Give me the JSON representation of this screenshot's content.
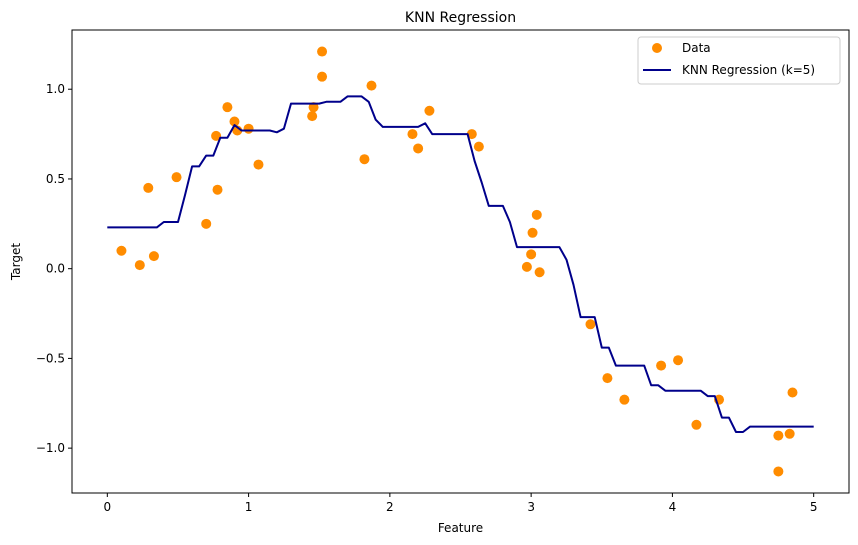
{
  "chart_data": {
    "type": "scatter",
    "title": "KNN Regression",
    "xlabel": "Feature",
    "ylabel": "Target",
    "xlim": [
      -0.25,
      5.25
    ],
    "ylim": [
      -1.25,
      1.33
    ],
    "xticks": [
      0,
      1,
      2,
      3,
      4,
      5
    ],
    "xtick_labels": [
      "0",
      "1",
      "2",
      "3",
      "4",
      "5"
    ],
    "yticks": [
      -1.0,
      -0.5,
      0.0,
      0.5,
      1.0
    ],
    "ytick_labels": [
      "−1.0",
      "−0.5",
      "0.0",
      "0.5",
      "1.0"
    ],
    "grid": false,
    "legend_position": "top-right",
    "series": [
      {
        "name": "Data",
        "kind": "scatter",
        "color": "#ff8c00",
        "points": [
          [
            0.1,
            0.1
          ],
          [
            0.23,
            0.02
          ],
          [
            0.29,
            0.45
          ],
          [
            0.33,
            0.07
          ],
          [
            0.49,
            0.51
          ],
          [
            0.7,
            0.25
          ],
          [
            0.77,
            0.74
          ],
          [
            0.78,
            0.44
          ],
          [
            0.85,
            0.9
          ],
          [
            0.9,
            0.82
          ],
          [
            0.92,
            0.77
          ],
          [
            1.0,
            0.78
          ],
          [
            1.07,
            0.58
          ],
          [
            1.45,
            0.85
          ],
          [
            1.46,
            0.9
          ],
          [
            1.52,
            1.07
          ],
          [
            1.52,
            1.21
          ],
          [
            1.82,
            0.61
          ],
          [
            1.87,
            1.02
          ],
          [
            2.16,
            0.75
          ],
          [
            2.2,
            0.67
          ],
          [
            2.28,
            0.88
          ],
          [
            2.58,
            0.75
          ],
          [
            2.63,
            0.68
          ],
          [
            2.97,
            0.01
          ],
          [
            3.0,
            0.08
          ],
          [
            3.01,
            0.2
          ],
          [
            3.04,
            0.3
          ],
          [
            3.06,
            -0.02
          ],
          [
            3.42,
            -0.31
          ],
          [
            3.54,
            -0.61
          ],
          [
            3.66,
            -0.73
          ],
          [
            3.92,
            -0.54
          ],
          [
            4.04,
            -0.51
          ],
          [
            4.17,
            -0.87
          ],
          [
            4.33,
            -0.73
          ],
          [
            4.75,
            -1.13
          ],
          [
            4.75,
            -0.93
          ],
          [
            4.83,
            -0.92
          ],
          [
            4.85,
            -0.69
          ]
        ]
      },
      {
        "name": "KNN Regression (k=5)",
        "kind": "line",
        "color": "#00008b",
        "points": [
          [
            0.0,
            0.23
          ],
          [
            0.35,
            0.23
          ],
          [
            0.4,
            0.26
          ],
          [
            0.5,
            0.26
          ],
          [
            0.55,
            0.41
          ],
          [
            0.6,
            0.57
          ],
          [
            0.65,
            0.57
          ],
          [
            0.7,
            0.63
          ],
          [
            0.75,
            0.63
          ],
          [
            0.8,
            0.73
          ],
          [
            0.85,
            0.73
          ],
          [
            0.9,
            0.8
          ],
          [
            0.95,
            0.77
          ],
          [
            1.15,
            0.77
          ],
          [
            1.2,
            0.76
          ],
          [
            1.25,
            0.78
          ],
          [
            1.3,
            0.92
          ],
          [
            1.5,
            0.92
          ],
          [
            1.55,
            0.93
          ],
          [
            1.65,
            0.93
          ],
          [
            1.7,
            0.96
          ],
          [
            1.8,
            0.96
          ],
          [
            1.85,
            0.93
          ],
          [
            1.9,
            0.83
          ],
          [
            1.95,
            0.79
          ],
          [
            2.2,
            0.79
          ],
          [
            2.25,
            0.81
          ],
          [
            2.3,
            0.75
          ],
          [
            2.55,
            0.75
          ],
          [
            2.6,
            0.6
          ],
          [
            2.65,
            0.48
          ],
          [
            2.7,
            0.35
          ],
          [
            2.8,
            0.35
          ],
          [
            2.85,
            0.26
          ],
          [
            2.9,
            0.12
          ],
          [
            3.2,
            0.12
          ],
          [
            3.25,
            0.05
          ],
          [
            3.3,
            -0.09
          ],
          [
            3.35,
            -0.27
          ],
          [
            3.45,
            -0.27
          ],
          [
            3.5,
            -0.44
          ],
          [
            3.55,
            -0.44
          ],
          [
            3.6,
            -0.54
          ],
          [
            3.8,
            -0.54
          ],
          [
            3.85,
            -0.65
          ],
          [
            3.9,
            -0.65
          ],
          [
            3.95,
            -0.68
          ],
          [
            4.2,
            -0.68
          ],
          [
            4.25,
            -0.71
          ],
          [
            4.3,
            -0.71
          ],
          [
            4.35,
            -0.83
          ],
          [
            4.4,
            -0.83
          ],
          [
            4.45,
            -0.91
          ],
          [
            4.5,
            -0.91
          ],
          [
            4.55,
            -0.88
          ],
          [
            5.0,
            -0.88
          ]
        ]
      }
    ]
  }
}
